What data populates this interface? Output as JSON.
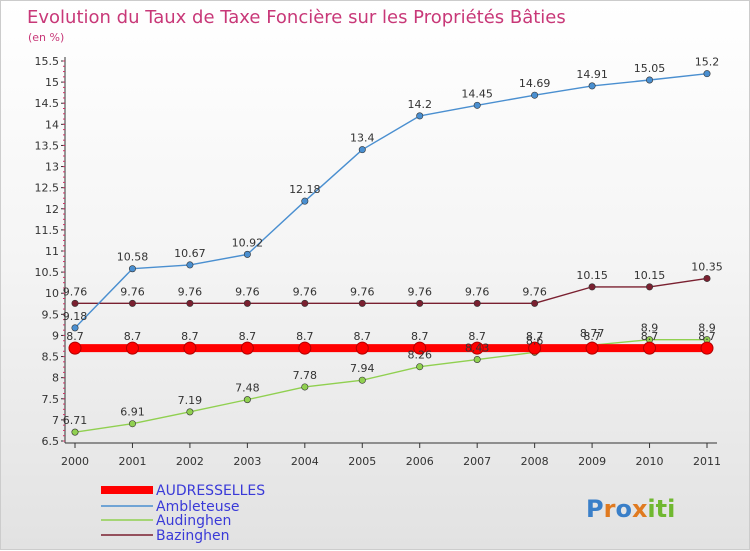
{
  "chart_data": {
    "type": "line",
    "title": "Evolution du Taux de Taxe Foncière sur les Propriétés Bâties",
    "subtitle": "(en %)",
    "x": [
      "2000",
      "2001",
      "2002",
      "2003",
      "2004",
      "2005",
      "2006",
      "2007",
      "2008",
      "2009",
      "2010",
      "2011"
    ],
    "ylim": [
      6.5,
      15.5
    ],
    "yticks": [
      "6.5",
      "7",
      "7.5",
      "8",
      "8.5",
      "9",
      "9.5",
      "10",
      "10.5",
      "11",
      "11.5",
      "12",
      "12.5",
      "13",
      "13.5",
      "14",
      "14.5",
      "15",
      "15.5"
    ],
    "grid": false,
    "legend_position": "bottom-left",
    "series": [
      {
        "name": "AUDRESSELLES",
        "color": "#ff0000",
        "values": [
          8.7,
          8.7,
          8.7,
          8.7,
          8.7,
          8.7,
          8.7,
          8.7,
          8.7,
          8.7,
          8.7,
          8.7
        ],
        "labels": [
          "8.7",
          "8.7",
          "8.7",
          "8.7",
          "8.7",
          "8.7",
          "8.7",
          "8.7",
          "8.7",
          "8.7",
          "8.7",
          "8.7"
        ]
      },
      {
        "name": "Ambleteuse",
        "color": "#4a8fd0",
        "values": [
          9.18,
          10.58,
          10.67,
          10.92,
          12.18,
          13.4,
          14.2,
          14.45,
          14.69,
          14.91,
          15.05,
          15.2
        ],
        "labels": [
          "9.18",
          "10.58",
          "10.67",
          "10.92",
          "12.18",
          "13.4",
          "14.2",
          "14.45",
          "14.69",
          "14.91",
          "15.05",
          "15.2"
        ]
      },
      {
        "name": "Audinghen",
        "color": "#90d050",
        "values": [
          6.71,
          6.91,
          7.19,
          7.48,
          7.78,
          7.94,
          8.26,
          8.43,
          8.6,
          8.77,
          8.9,
          8.9
        ],
        "labels": [
          "6.71",
          "6.91",
          "7.19",
          "7.48",
          "7.78",
          "7.94",
          "8.26",
          "8.43",
          "8.6",
          "8.77",
          "8.9",
          "8.9"
        ]
      },
      {
        "name": "Bazinghen",
        "color": "#7a2030",
        "values": [
          9.76,
          9.76,
          9.76,
          9.76,
          9.76,
          9.76,
          9.76,
          9.76,
          9.76,
          10.15,
          10.15,
          10.35
        ],
        "labels": [
          "9.76",
          "9.76",
          "9.76",
          "9.76",
          "9.76",
          "9.76",
          "9.76",
          "9.76",
          "9.76",
          "10.15",
          "10.15",
          "10.35"
        ]
      }
    ]
  },
  "logo": {
    "text": "Proxiti"
  }
}
